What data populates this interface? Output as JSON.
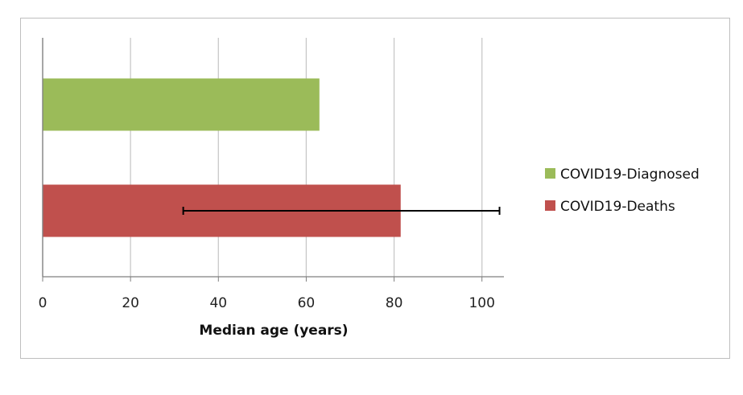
{
  "chart_data": {
    "type": "bar",
    "orientation": "horizontal",
    "xlabel": "Median age (years)",
    "xlim": [
      0,
      105
    ],
    "xticks": [
      0,
      20,
      40,
      60,
      80,
      100
    ],
    "grid": true,
    "legend_position": "right",
    "series": [
      {
        "name": "COVID19-Diagnosed",
        "value": 63,
        "color": "#9bbb59"
      },
      {
        "name": "COVID19-Deaths",
        "value": 81.5,
        "color": "#c0504d",
        "error_range": [
          32,
          104
        ]
      }
    ]
  }
}
